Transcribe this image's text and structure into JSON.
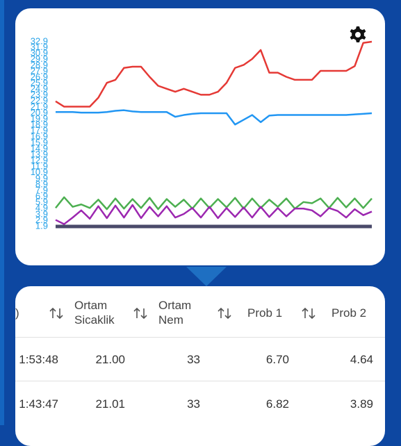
{
  "chart_data": {
    "type": "line",
    "ylim": [
      1.9,
      32.9
    ],
    "yticks": [
      1.9,
      2.9,
      3.9,
      4.9,
      5.9,
      6.9,
      7.9,
      8.9,
      9.9,
      10.9,
      11.9,
      12.9,
      13.9,
      14.9,
      15.9,
      16.9,
      17.9,
      18.9,
      19.9,
      20.9,
      21.9,
      22.9,
      23.9,
      24.9,
      25.9,
      26.9,
      27.9,
      28.9,
      29.9,
      30.9,
      31.9,
      32.9
    ],
    "series": [
      {
        "color": "#e53935",
        "values": [
          22.9,
          22.0,
          22.0,
          22.0,
          22.0,
          23.5,
          26.0,
          26.5,
          28.5,
          28.7,
          28.7,
          27.0,
          25.5,
          25.0,
          24.5,
          25.0,
          24.5,
          24.0,
          24.0,
          24.5,
          26.0,
          28.5,
          29.0,
          30.0,
          31.5,
          27.7,
          27.7,
          27.0,
          26.5,
          26.5,
          26.5,
          28.0,
          28.0,
          28.0,
          28.0,
          28.8,
          32.7,
          32.9
        ]
      },
      {
        "color": "#2196f3",
        "values": [
          21.1,
          21.1,
          21.1,
          21.0,
          21.0,
          21.0,
          21.1,
          21.3,
          21.4,
          21.2,
          21.1,
          21.1,
          21.1,
          21.1,
          20.3,
          20.6,
          20.8,
          20.9,
          20.9,
          20.9,
          20.9,
          19.0,
          19.8,
          20.6,
          19.4,
          20.5,
          20.6,
          20.6,
          20.6,
          20.6,
          20.6,
          20.6,
          20.6,
          20.6,
          20.6,
          20.7,
          20.8,
          20.9
        ]
      },
      {
        "color": "#4caf50",
        "values": [
          5.0,
          6.8,
          5.2,
          5.6,
          5.0,
          6.4,
          4.8,
          6.6,
          4.9,
          6.5,
          5.0,
          6.7,
          4.8,
          6.5,
          5.2,
          6.4,
          4.9,
          6.6,
          5.0,
          6.5,
          5.1,
          6.7,
          4.9,
          6.6,
          5.0,
          6.4,
          5.2,
          6.6,
          4.9,
          6.0,
          5.8,
          6.6,
          5.0,
          6.7,
          5.1,
          6.6,
          5.0,
          6.6
        ]
      },
      {
        "color": "#9c27b0",
        "values": [
          3.0,
          2.3,
          3.4,
          4.6,
          3.2,
          5.3,
          3.3,
          5.4,
          3.4,
          5.5,
          3.3,
          5.2,
          3.6,
          5.3,
          3.4,
          4.0,
          5.0,
          3.4,
          5.2,
          3.3,
          5.0,
          3.5,
          5.1,
          3.4,
          5.2,
          3.5,
          5.0,
          3.6,
          4.9,
          4.9,
          4.6,
          3.6,
          5.0,
          4.5,
          3.4,
          4.8,
          3.8,
          4.4
        ]
      },
      {
        "color": "#4a4a6a",
        "values": [
          1.9,
          1.9,
          1.9,
          1.9,
          1.9,
          1.9,
          1.9,
          1.9,
          1.9,
          1.9,
          1.9,
          1.9,
          1.9,
          1.9,
          1.9,
          1.9,
          1.9,
          1.9,
          1.9,
          1.9,
          1.9,
          1.9,
          1.9,
          1.9,
          1.9,
          1.9,
          1.9,
          1.9,
          1.9,
          1.9,
          1.9,
          1.9,
          1.9,
          1.9,
          1.9,
          1.9,
          1.9,
          1.9
        ]
      }
    ]
  },
  "table": {
    "headers": [
      ")",
      "Ortam Sicaklik",
      "Ortam Nem",
      "Prob 1",
      "Prob 2"
    ],
    "rows": [
      [
        "1:53:48",
        "21.00",
        "33",
        "6.70",
        "4.64"
      ],
      [
        "1:43:47",
        "21.01",
        "33",
        "6.82",
        "3.89"
      ]
    ]
  }
}
